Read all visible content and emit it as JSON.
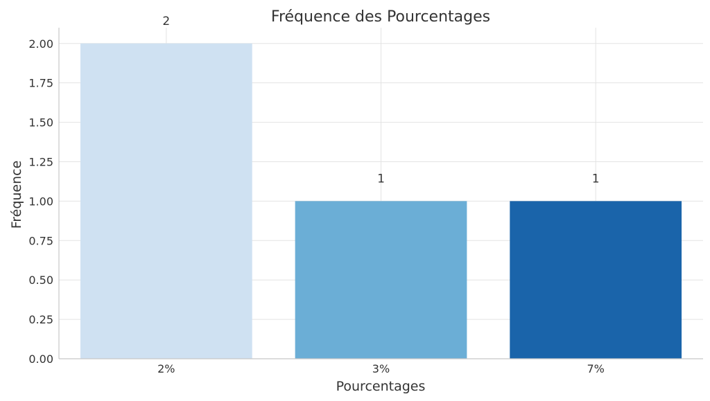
{
  "chart_data": {
    "type": "bar",
    "title": "Fréquence des Pourcentages",
    "xlabel": "Pourcentages",
    "ylabel": "Fréquence",
    "categories": [
      "2%",
      "3%",
      "7%"
    ],
    "values": [
      2,
      1,
      1
    ],
    "data_labels": [
      "2",
      "1",
      "1"
    ],
    "ylim": [
      0,
      2.1
    ],
    "yticks": [
      "0.00",
      "0.25",
      "0.50",
      "0.75",
      "1.00",
      "1.25",
      "1.50",
      "1.75",
      "2.00"
    ],
    "ytick_values": [
      0,
      0.25,
      0.5,
      0.75,
      1.0,
      1.25,
      1.5,
      1.75,
      2.0
    ],
    "colors": [
      "#cfe1f2",
      "#6baed6",
      "#1a64aa"
    ],
    "grid": true,
    "legend": false
  }
}
